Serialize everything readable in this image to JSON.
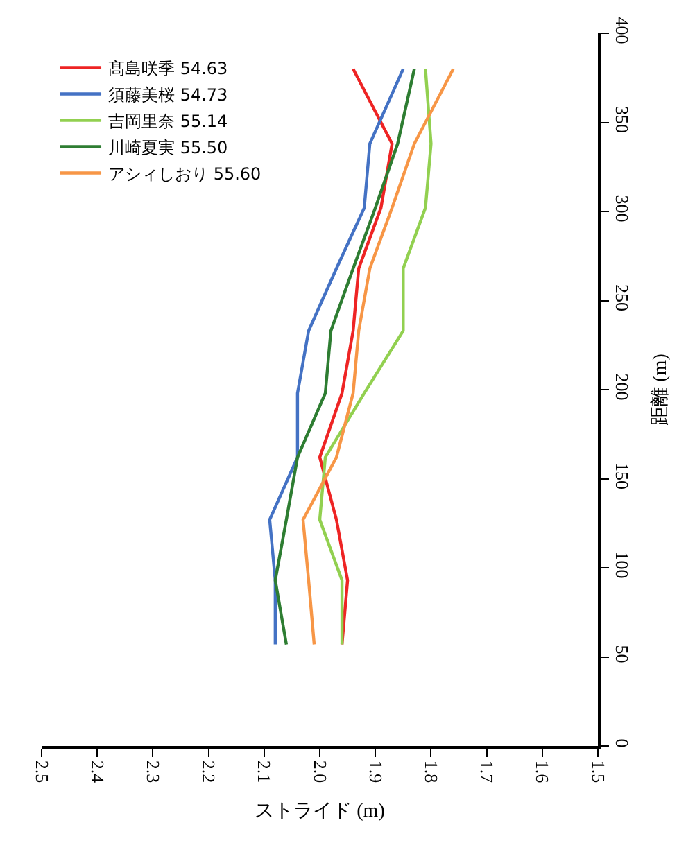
{
  "chart_data": {
    "type": "line",
    "orientation": "horizontal",
    "xlabel": "ストライド (m)",
    "ylabel": "距離 (m)",
    "x": [
      57,
      93,
      127,
      162,
      198,
      233,
      268,
      302,
      338,
      380
    ],
    "series": [
      {
        "name": "髙島咲季 54.63",
        "color": "#ee2424",
        "values": [
          1.96,
          1.95,
          1.97,
          2.0,
          1.96,
          1.94,
          1.93,
          1.89,
          1.87,
          1.94
        ]
      },
      {
        "name": "須藤美桜 54.73",
        "color": "#4472c4",
        "values": [
          2.08,
          2.08,
          2.09,
          2.04,
          2.04,
          2.02,
          1.97,
          1.92,
          1.91,
          1.85
        ]
      },
      {
        "name": "吉岡里奈 55.14",
        "color": "#92d050",
        "values": [
          1.96,
          1.96,
          2.0,
          1.99,
          1.92,
          1.85,
          1.85,
          1.81,
          1.8,
          1.81
        ]
      },
      {
        "name": "川崎夏実 55.50",
        "color": "#2e7d32",
        "values": [
          2.06,
          2.08,
          2.06,
          2.04,
          1.99,
          1.98,
          1.94,
          1.9,
          1.86,
          1.83
        ]
      },
      {
        "name": "アシィしおり 55.60",
        "color": "#f79646",
        "values": [
          2.01,
          2.02,
          2.03,
          1.97,
          1.94,
          1.93,
          1.91,
          1.87,
          1.83,
          1.76
        ]
      }
    ],
    "xlim": [
      2.5,
      1.5
    ],
    "xticks": [
      2.5,
      2.4,
      2.3,
      2.2,
      2.1,
      {
        "value": 2.0,
        "label": "2.0"
      },
      1.9,
      1.8,
      1.7,
      1.6,
      1.5
    ],
    "ylim": [
      0,
      400
    ],
    "yticks": [
      0,
      50,
      100,
      150,
      200,
      250,
      300,
      350,
      400
    ],
    "legend": "top left",
    "marker": "none",
    "line_style": "solid"
  }
}
